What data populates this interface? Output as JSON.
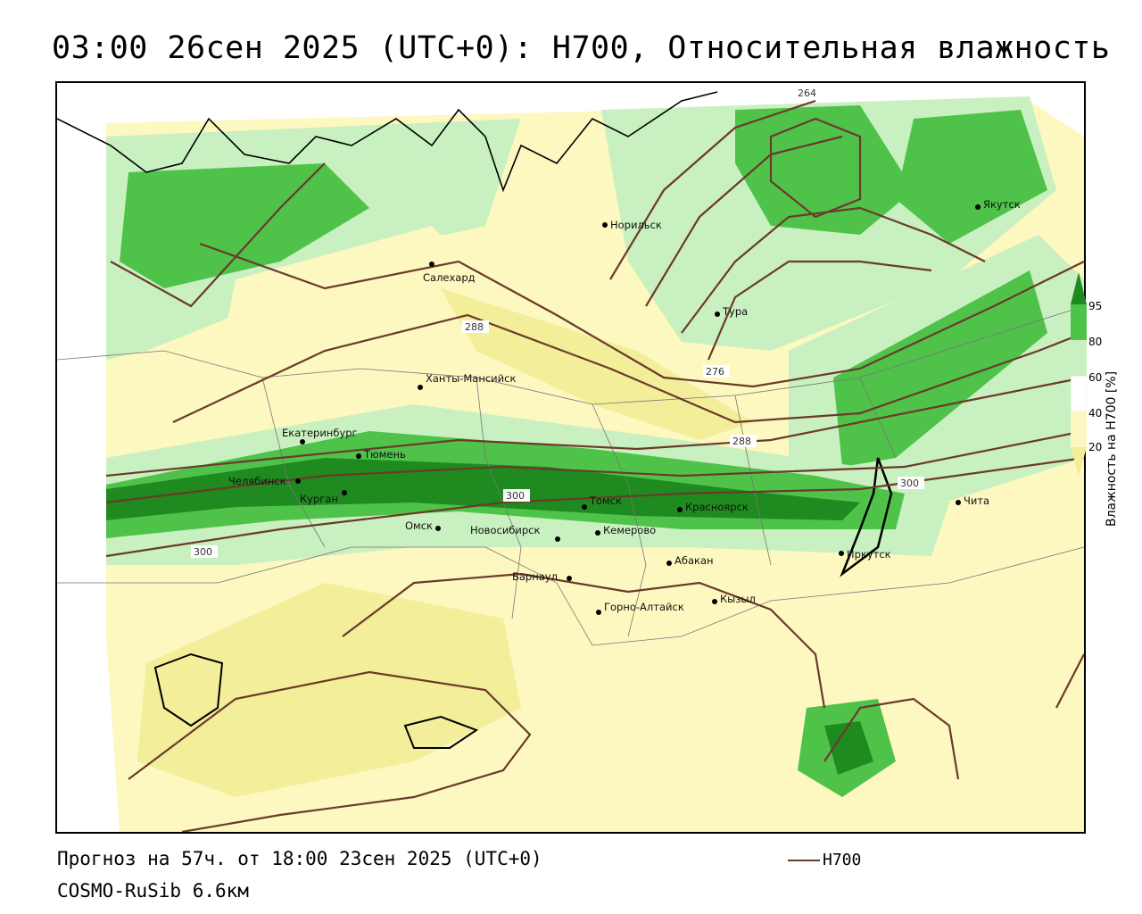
{
  "title": "03:00 26сен 2025 (UTC+0): H700, Относительная влажность",
  "footer": {
    "forecast": "Прогноз на 57ч. от 18:00 23сен 2025 (UTC+0)",
    "model": "COSMO-RuSib 6.6км"
  },
  "legend": {
    "line_label": "H700",
    "line_color": "#6b3a2a"
  },
  "colorbar": {
    "title": "Влажность на H700 [%]",
    "ticks": [
      "95",
      "80",
      "60",
      "40",
      "20"
    ],
    "colors": {
      "very_dry": "#f2ee9a",
      "dry": "#fdf7c0",
      "neutral": "#ffffff",
      "moist": "#c8f0c0",
      "humid": "#4fc24a",
      "saturated": "#1f8a1f"
    }
  },
  "contours": {
    "labels": [
      "264",
      "276",
      "288",
      "288",
      "300",
      "300",
      "300"
    ]
  },
  "cities": [
    {
      "name": "Салехард"
    },
    {
      "name": "Норильск"
    },
    {
      "name": "Якутск"
    },
    {
      "name": "Тура"
    },
    {
      "name": "Ханты-Мансийск"
    },
    {
      "name": "Екатеринбург"
    },
    {
      "name": "Тюмень"
    },
    {
      "name": "Челябинск"
    },
    {
      "name": "Курган"
    },
    {
      "name": "Омск"
    },
    {
      "name": "Новосибирск"
    },
    {
      "name": "Томск"
    },
    {
      "name": "Кемерово"
    },
    {
      "name": "Красноярск"
    },
    {
      "name": "Абакан"
    },
    {
      "name": "Барнаул"
    },
    {
      "name": "Горно-Алтайск"
    },
    {
      "name": "Кызыл"
    },
    {
      "name": "Иркутск"
    },
    {
      "name": "Чита"
    }
  ]
}
